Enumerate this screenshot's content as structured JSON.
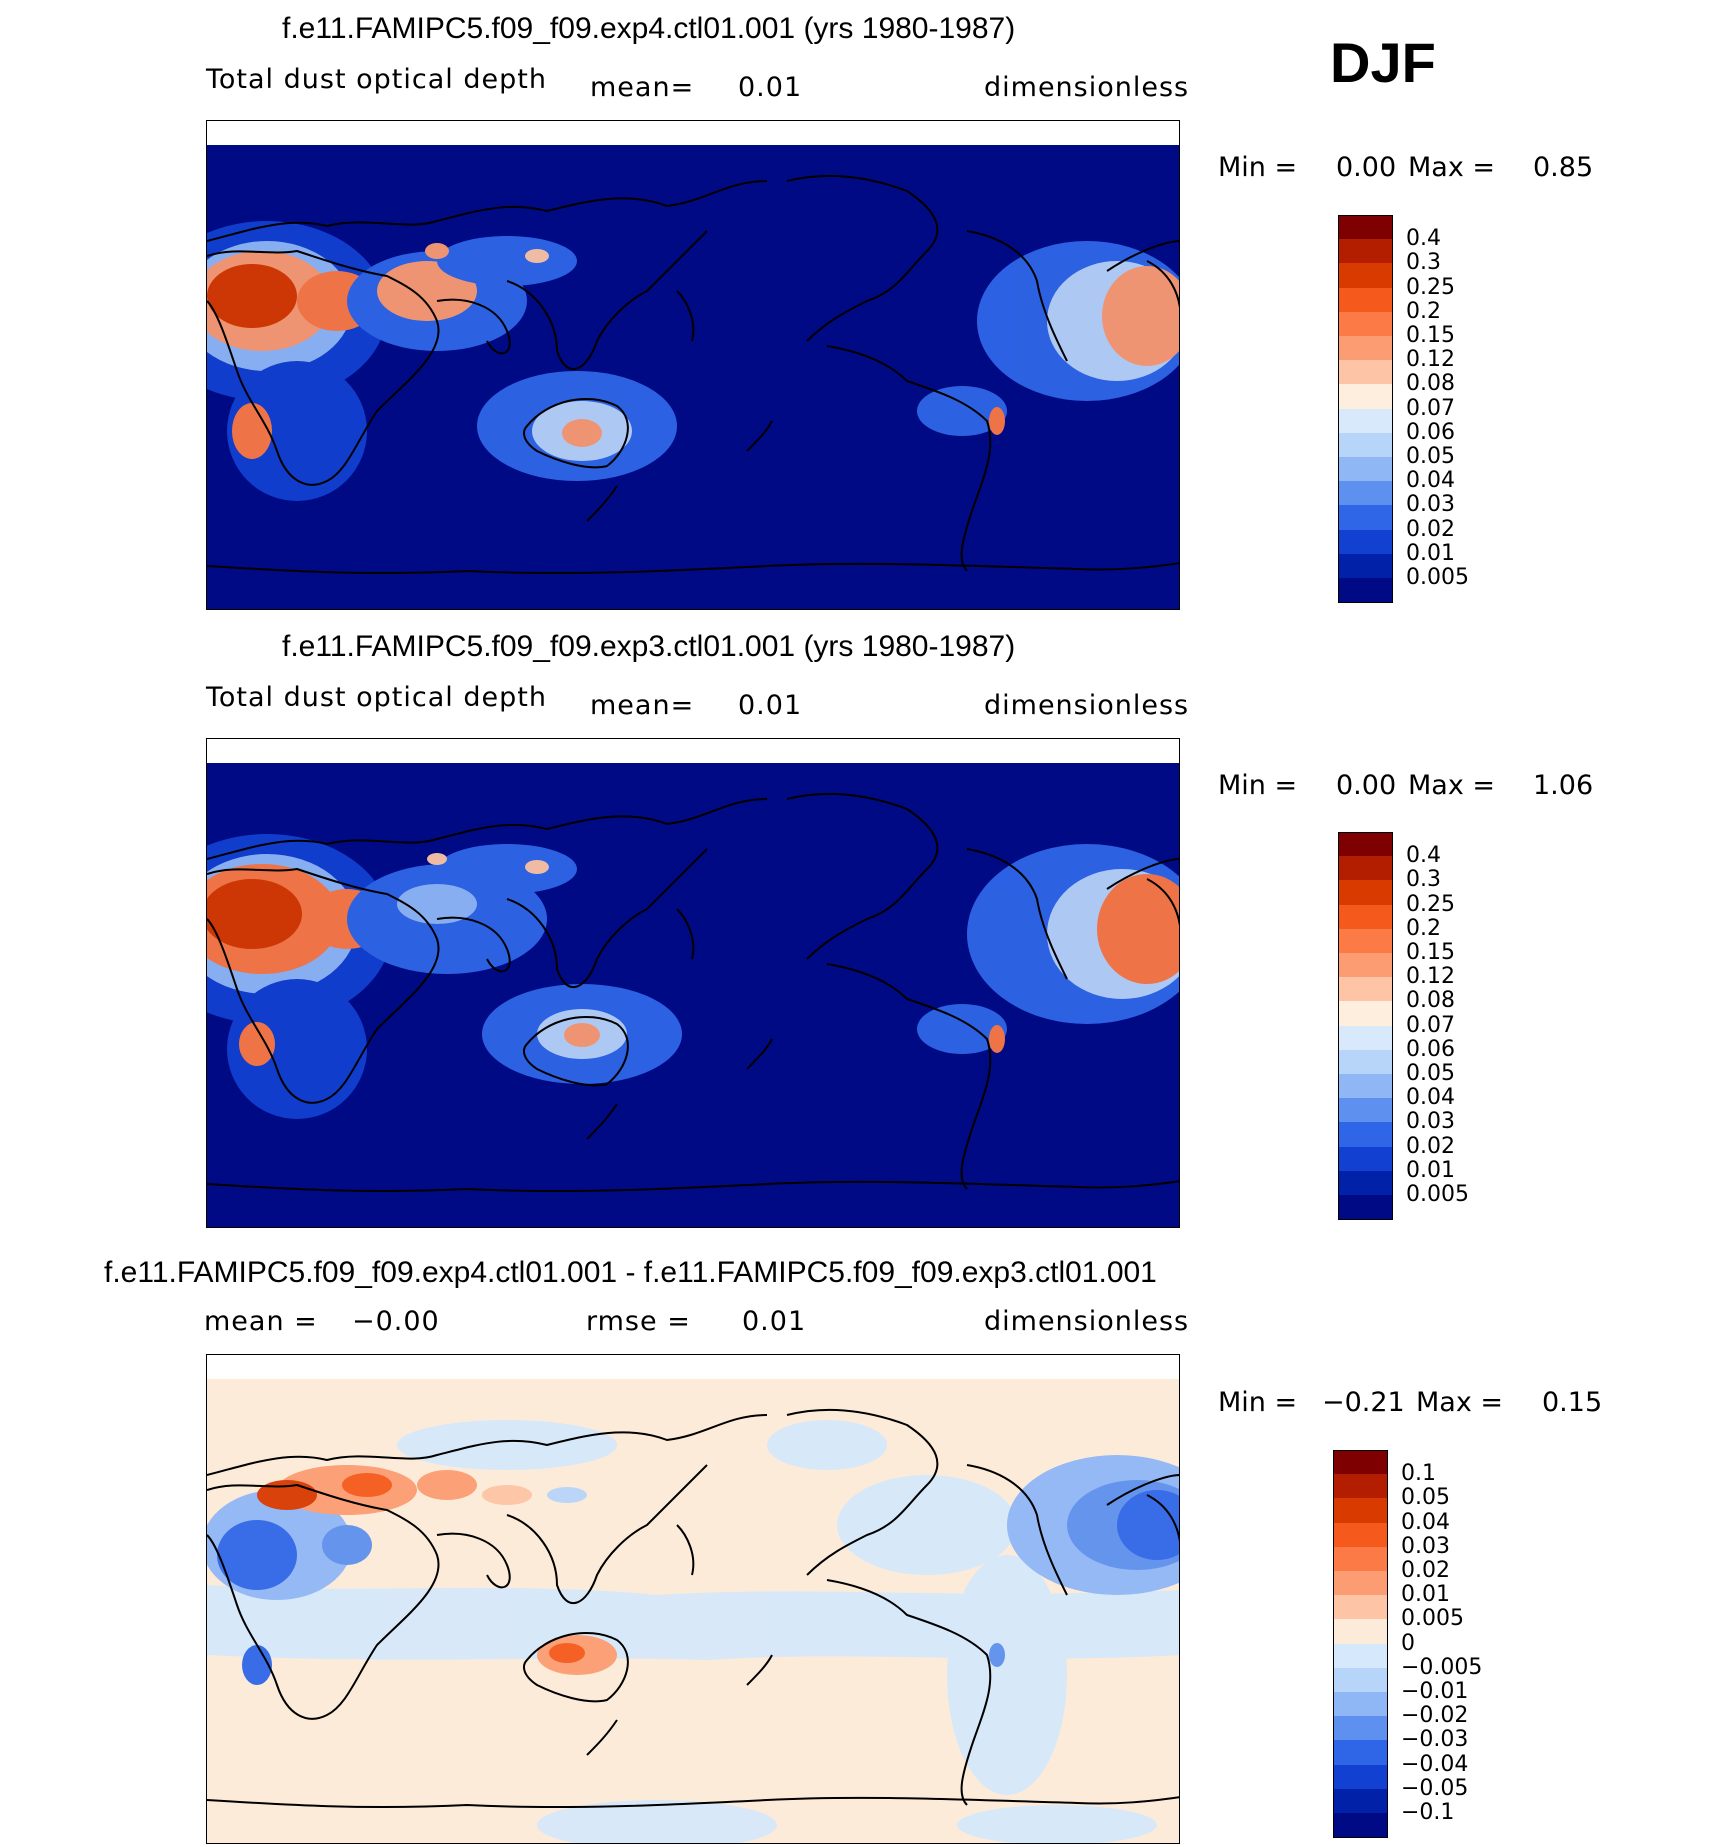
{
  "season": "DJF",
  "panels": [
    {
      "title": "f.e11.FAMIPC5.f09_f09.exp4.ctl01.001 (yrs 1980-1987)",
      "variable": "Total dust optical depth",
      "stat1_label": "mean=",
      "stat1_value": "0.01",
      "units": "dimensionless",
      "min_label": "Min =",
      "min_value": "0.00",
      "max_label": "Max =",
      "max_value": "0.85",
      "colorbar_labels": [
        "0.4",
        "0.3",
        "0.25",
        "0.2",
        "0.15",
        "0.12",
        "0.08",
        "0.07",
        "0.06",
        "0.05",
        "0.04",
        "0.03",
        "0.02",
        "0.01",
        "0.005"
      ]
    },
    {
      "title": "f.e11.FAMIPC5.f09_f09.exp3.ctl01.001 (yrs 1980-1987)",
      "variable": "Total dust optical depth",
      "stat1_label": "mean=",
      "stat1_value": "0.01",
      "units": "dimensionless",
      "min_label": "Min =",
      "min_value": "0.00",
      "max_label": "Max =",
      "max_value": "1.06",
      "colorbar_labels": [
        "0.4",
        "0.3",
        "0.25",
        "0.2",
        "0.15",
        "0.12",
        "0.08",
        "0.07",
        "0.06",
        "0.05",
        "0.04",
        "0.03",
        "0.02",
        "0.01",
        "0.005"
      ]
    },
    {
      "title": "f.e11.FAMIPC5.f09_f09.exp4.ctl01.001 - f.e11.FAMIPC5.f09_f09.exp3.ctl01.001",
      "stat1_label": "mean =",
      "stat1_value": "−0.00",
      "stat2_label": "rmse =",
      "stat2_value": "0.01",
      "units": "dimensionless",
      "min_label": "Min =",
      "min_value": "−0.21",
      "max_label": "Max =",
      "max_value": "0.15",
      "colorbar_labels": [
        "0.1",
        "0.05",
        "0.04",
        "0.03",
        "0.02",
        "0.01",
        "0.005",
        "0",
        "−0.005",
        "−0.01",
        "−0.02",
        "−0.03",
        "−0.04",
        "−0.05",
        "−0.1"
      ]
    }
  ],
  "colors": {
    "abs_scale": [
      "#7f0000",
      "#b31d00",
      "#d93a00",
      "#f55a1c",
      "#fb7a45",
      "#fc9c72",
      "#fdc5a5",
      "#fdeedd",
      "#d8e9fb",
      "#b7d4f9",
      "#8fb7f6",
      "#5d90ef",
      "#2f66e8",
      "#1240d0",
      "#0021a8",
      "#000a85"
    ],
    "diff_scale": [
      "#7f0000",
      "#b31d00",
      "#d93a00",
      "#f55a1c",
      "#fb7a45",
      "#fc9c72",
      "#fdc5a5",
      "#fdebd9",
      "#d6e8fb",
      "#b7d4f9",
      "#8fb7f6",
      "#5d90ef",
      "#2f66e8",
      "#1240d0",
      "#0021a8",
      "#000a85"
    ],
    "map_background_abs": "#000a85",
    "map_background_diff": "#fdebd9",
    "coastline": "#000000"
  }
}
